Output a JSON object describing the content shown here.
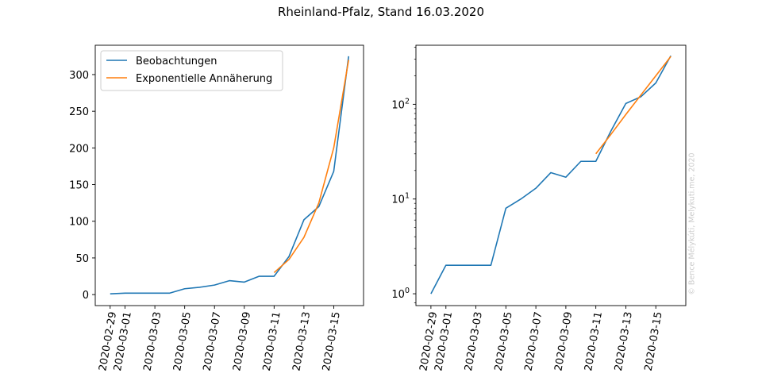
{
  "figure": {
    "title": "Rheinland-Pfalz, Stand 16.03.2020",
    "watermark": "© Bence Mélykúti, Melykuti.me, 2020"
  },
  "colors": {
    "observations": "#1f77b4",
    "fit": "#ff7f0e",
    "axes": "#000000",
    "watermark": "#cccccc"
  },
  "chart_data": [
    {
      "type": "line",
      "scale": "linear",
      "x": [
        "2020-02-29",
        "2020-03-01",
        "2020-03-02",
        "2020-03-03",
        "2020-03-04",
        "2020-03-05",
        "2020-03-06",
        "2020-03-07",
        "2020-03-08",
        "2020-03-09",
        "2020-03-10",
        "2020-03-11",
        "2020-03-12",
        "2020-03-13",
        "2020-03-14",
        "2020-03-15",
        "2020-03-16"
      ],
      "xticks": [
        "2020-02-29",
        "2020-03-01",
        "2020-03-03",
        "2020-03-05",
        "2020-03-07",
        "2020-03-09",
        "2020-03-11",
        "2020-03-13",
        "2020-03-15"
      ],
      "xlim": [
        "2020-02-28",
        "2020-03-17"
      ],
      "ylim": [
        -15,
        340
      ],
      "yticks": [
        0,
        50,
        100,
        150,
        200,
        250,
        300
      ],
      "ytick_labels": [
        "0",
        "50",
        "100",
        "150",
        "200",
        "250",
        "300"
      ],
      "legend": "top-left",
      "grid": false,
      "series": [
        {
          "name": "Beobachtungen",
          "color": "#1f77b4",
          "x": [
            "2020-02-29",
            "2020-03-01",
            "2020-03-02",
            "2020-03-03",
            "2020-03-04",
            "2020-03-05",
            "2020-03-06",
            "2020-03-07",
            "2020-03-08",
            "2020-03-09",
            "2020-03-10",
            "2020-03-11",
            "2020-03-12",
            "2020-03-13",
            "2020-03-14",
            "2020-03-15",
            "2020-03-16"
          ],
          "values": [
            1,
            2,
            2,
            2,
            2,
            8,
            10,
            13,
            19,
            17,
            25,
            25,
            52,
            102,
            120,
            168,
            325
          ]
        },
        {
          "name": "Exponentielle Annäherung",
          "color": "#ff7f0e",
          "x": [
            "2020-03-11",
            "2020-03-12",
            "2020-03-13",
            "2020-03-14",
            "2020-03-15",
            "2020-03-16"
          ],
          "values": [
            30,
            48,
            78,
            125,
            200,
            320
          ]
        }
      ]
    },
    {
      "type": "line",
      "scale": "log",
      "x": [
        "2020-02-29",
        "2020-03-01",
        "2020-03-02",
        "2020-03-03",
        "2020-03-04",
        "2020-03-05",
        "2020-03-06",
        "2020-03-07",
        "2020-03-08",
        "2020-03-09",
        "2020-03-10",
        "2020-03-11",
        "2020-03-12",
        "2020-03-13",
        "2020-03-14",
        "2020-03-15",
        "2020-03-16"
      ],
      "xticks": [
        "2020-02-29",
        "2020-03-01",
        "2020-03-03",
        "2020-03-05",
        "2020-03-07",
        "2020-03-09",
        "2020-03-11",
        "2020-03-13",
        "2020-03-15"
      ],
      "xlim": [
        "2020-02-28",
        "2020-03-17"
      ],
      "ylim": [
        0.75,
        420
      ],
      "yticks": [
        1,
        10,
        100
      ],
      "ytick_labels": [
        "10",
        "10",
        "10"
      ],
      "ytick_exponents": [
        "0",
        "1",
        "2"
      ],
      "grid": false,
      "series": [
        {
          "color": "#1f77b4",
          "x": [
            "2020-02-29",
            "2020-03-01",
            "2020-03-02",
            "2020-03-03",
            "2020-03-04",
            "2020-03-05",
            "2020-03-06",
            "2020-03-07",
            "2020-03-08",
            "2020-03-09",
            "2020-03-10",
            "2020-03-11",
            "2020-03-12",
            "2020-03-13",
            "2020-03-14",
            "2020-03-15",
            "2020-03-16"
          ],
          "values": [
            1,
            2,
            2,
            2,
            2,
            8,
            10,
            13,
            19,
            17,
            25,
            25,
            52,
            102,
            120,
            168,
            325
          ]
        },
        {
          "color": "#ff7f0e",
          "x": [
            "2020-03-11",
            "2020-03-12",
            "2020-03-13",
            "2020-03-14",
            "2020-03-15",
            "2020-03-16"
          ],
          "values": [
            30,
            48,
            78,
            125,
            200,
            320
          ]
        }
      ]
    }
  ]
}
